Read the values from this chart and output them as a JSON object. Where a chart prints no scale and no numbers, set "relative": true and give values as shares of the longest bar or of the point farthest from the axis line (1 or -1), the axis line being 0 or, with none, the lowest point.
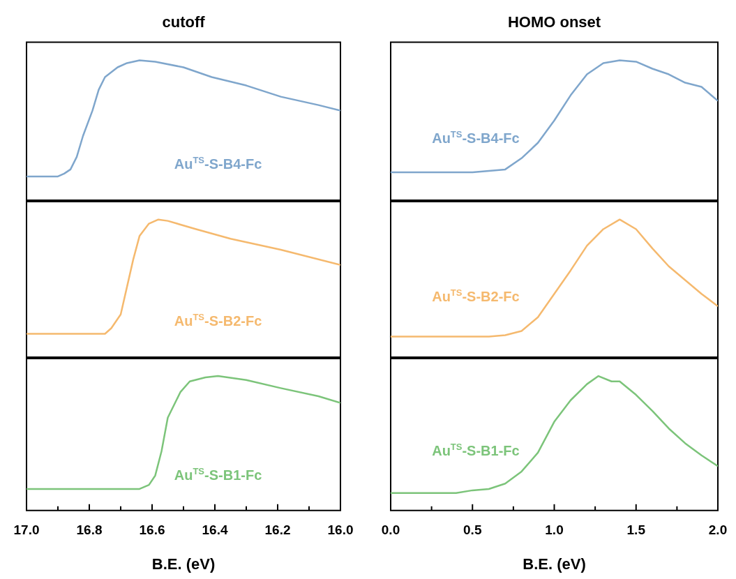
{
  "chart_data": [
    {
      "type": "line",
      "title": "cutoff",
      "relative": true,
      "tick_labels": false,
      "xlim": [
        17.0,
        16.0
      ],
      "series": [
        {
          "name": "Au$^{TS}$-S-B4-Fc",
          "color": "#7fa6cc",
          "x": [
            17.0,
            16.9,
            16.88,
            16.86,
            16.84,
            16.82,
            16.79,
            16.77,
            16.75,
            16.71,
            16.68,
            16.64,
            16.59,
            16.5,
            16.41,
            16.3,
            16.19,
            16.07,
            16.0
          ],
          "values": [
            0.17,
            0.17,
            0.19,
            0.22,
            0.31,
            0.46,
            0.64,
            0.79,
            0.88,
            0.95,
            0.98,
            1.0,
            0.99,
            0.95,
            0.88,
            0.82,
            0.74,
            0.68,
            0.64
          ]
        }
      ]
    },
    {
      "type": "line",
      "title": "HOMO onset",
      "relative": true,
      "tick_labels": false,
      "xlim": [
        0.0,
        2.0
      ],
      "series": [
        {
          "name": "Au$^{TS}$-S-B4-Fc",
          "color": "#7fa6cc",
          "x": [
            0,
            0.5,
            0.6,
            0.7,
            0.8,
            0.9,
            1.0,
            1.1,
            1.2,
            1.3,
            1.4,
            1.5,
            1.6,
            1.7,
            1.8,
            1.9,
            2.0
          ],
          "values": [
            0.2,
            0.2,
            0.21,
            0.22,
            0.3,
            0.41,
            0.57,
            0.75,
            0.9,
            0.98,
            1.0,
            0.99,
            0.94,
            0.9,
            0.84,
            0.81,
            0.71
          ]
        }
      ]
    },
    {
      "type": "line",
      "relative": true,
      "tick_labels": false,
      "xlim": [
        17.0,
        16.0
      ],
      "series": [
        {
          "name": "Au$^{TS}$-S-B2-Fc",
          "color": "#f5b96e",
          "x": [
            17.0,
            16.75,
            16.73,
            16.7,
            16.68,
            16.66,
            16.64,
            16.61,
            16.58,
            16.55,
            16.46,
            16.35,
            16.19,
            16.0
          ],
          "values": [
            0.17,
            0.17,
            0.21,
            0.31,
            0.51,
            0.71,
            0.88,
            0.97,
            1.0,
            0.99,
            0.93,
            0.86,
            0.78,
            0.67
          ]
        }
      ]
    },
    {
      "type": "line",
      "relative": true,
      "tick_labels": false,
      "xlim": [
        0.0,
        2.0
      ],
      "series": [
        {
          "name": "Au$^{TS}$-S-B2-Fc",
          "color": "#f5b96e",
          "x": [
            0,
            0.6,
            0.7,
            0.8,
            0.9,
            1.0,
            1.1,
            1.2,
            1.3,
            1.4,
            1.5,
            1.6,
            1.7,
            1.8,
            1.9,
            2.0
          ],
          "values": [
            0.15,
            0.15,
            0.16,
            0.19,
            0.29,
            0.46,
            0.63,
            0.81,
            0.93,
            1.0,
            0.93,
            0.79,
            0.66,
            0.56,
            0.46,
            0.37
          ]
        }
      ]
    },
    {
      "type": "line",
      "relative": true,
      "tick_labels": "x",
      "xlabel": "B.E. (eV)",
      "xlim": [
        17.0,
        16.0
      ],
      "xticks": [
        {
          "value": 17.0,
          "label": "17.0"
        },
        {
          "value": 16.9,
          "label": null
        },
        {
          "value": 16.8,
          "label": "16.8"
        },
        {
          "value": 16.7,
          "label": null
        },
        {
          "value": 16.6,
          "label": "16.6"
        },
        {
          "value": 16.5,
          "label": null
        },
        {
          "value": 16.4,
          "label": "16.4"
        },
        {
          "value": 16.3,
          "label": null
        },
        {
          "value": 16.2,
          "label": "16.2"
        },
        {
          "value": 16.1,
          "label": null
        },
        {
          "value": 16.0,
          "label": "16.0"
        }
      ],
      "series": [
        {
          "name": "Au$^{TS}$-S-B1-Fc",
          "color": "#7cc47a",
          "x": [
            17.0,
            16.64,
            16.61,
            16.59,
            16.57,
            16.55,
            16.51,
            16.48,
            16.43,
            16.39,
            16.3,
            16.19,
            16.07,
            16.0
          ],
          "values": [
            0.16,
            0.16,
            0.19,
            0.26,
            0.44,
            0.69,
            0.88,
            0.96,
            0.99,
            1.0,
            0.97,
            0.91,
            0.85,
            0.8
          ]
        }
      ]
    },
    {
      "type": "line",
      "relative": true,
      "tick_labels": "x",
      "xlabel": "B.E. (eV)",
      "xlim": [
        0.0,
        2.0
      ],
      "xticks": [
        {
          "value": 0,
          "label": "0.0"
        },
        {
          "value": 0.25,
          "label": null
        },
        {
          "value": 0.5,
          "label": "0.5"
        },
        {
          "value": 0.75,
          "label": null
        },
        {
          "value": 1.0,
          "label": "1.0"
        },
        {
          "value": 1.25,
          "label": null
        },
        {
          "value": 1.5,
          "label": "1.5"
        },
        {
          "value": 1.75,
          "label": null
        },
        {
          "value": 2.0,
          "label": "2.0"
        }
      ],
      "series": [
        {
          "name": "Au$^{TS}$-S-B1-Fc",
          "color": "#7cc47a",
          "x": [
            0,
            0.4,
            0.5,
            0.6,
            0.7,
            0.8,
            0.9,
            1.0,
            1.1,
            1.2,
            1.27,
            1.35,
            1.4,
            1.5,
            1.6,
            1.7,
            1.8,
            1.9,
            2.0
          ],
          "values": [
            0.13,
            0.13,
            0.15,
            0.16,
            0.2,
            0.29,
            0.43,
            0.66,
            0.82,
            0.94,
            1.0,
            0.96,
            0.96,
            0.86,
            0.74,
            0.61,
            0.5,
            0.41,
            0.33
          ]
        }
      ]
    }
  ]
}
